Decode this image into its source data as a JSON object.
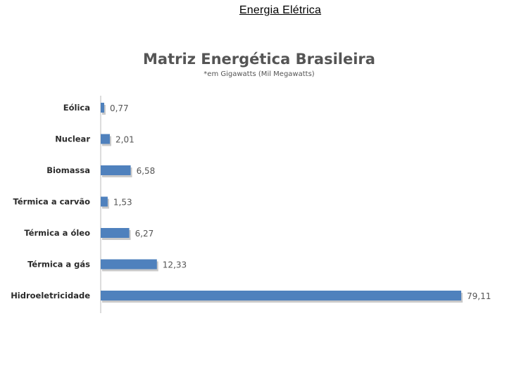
{
  "slide": {
    "title": "Energia Elétrica"
  },
  "colors": {
    "bar": "#4f81bd",
    "axis": "#d0d0d0",
    "text": "#2b2b2b"
  },
  "chart_data": {
    "type": "bar",
    "orientation": "horizontal",
    "title": "Matriz Energética Brasileira",
    "subtitle": "*em Gigawatts (Mil Megawatts)",
    "categories": [
      "Eólica",
      "Nuclear",
      "Biomassa",
      "Térmica a carvão",
      "Térmica a óleo",
      "Térmica a gás",
      "Hidroeletricidade"
    ],
    "values": [
      0.77,
      2.01,
      6.58,
      1.53,
      6.27,
      12.33,
      79.11
    ],
    "value_labels": [
      "0,77",
      "2,01",
      "6,58",
      "1,53",
      "6,27",
      "12,33",
      "79,11"
    ],
    "xlim": [
      0,
      80
    ],
    "grid": false,
    "legend": "none"
  }
}
